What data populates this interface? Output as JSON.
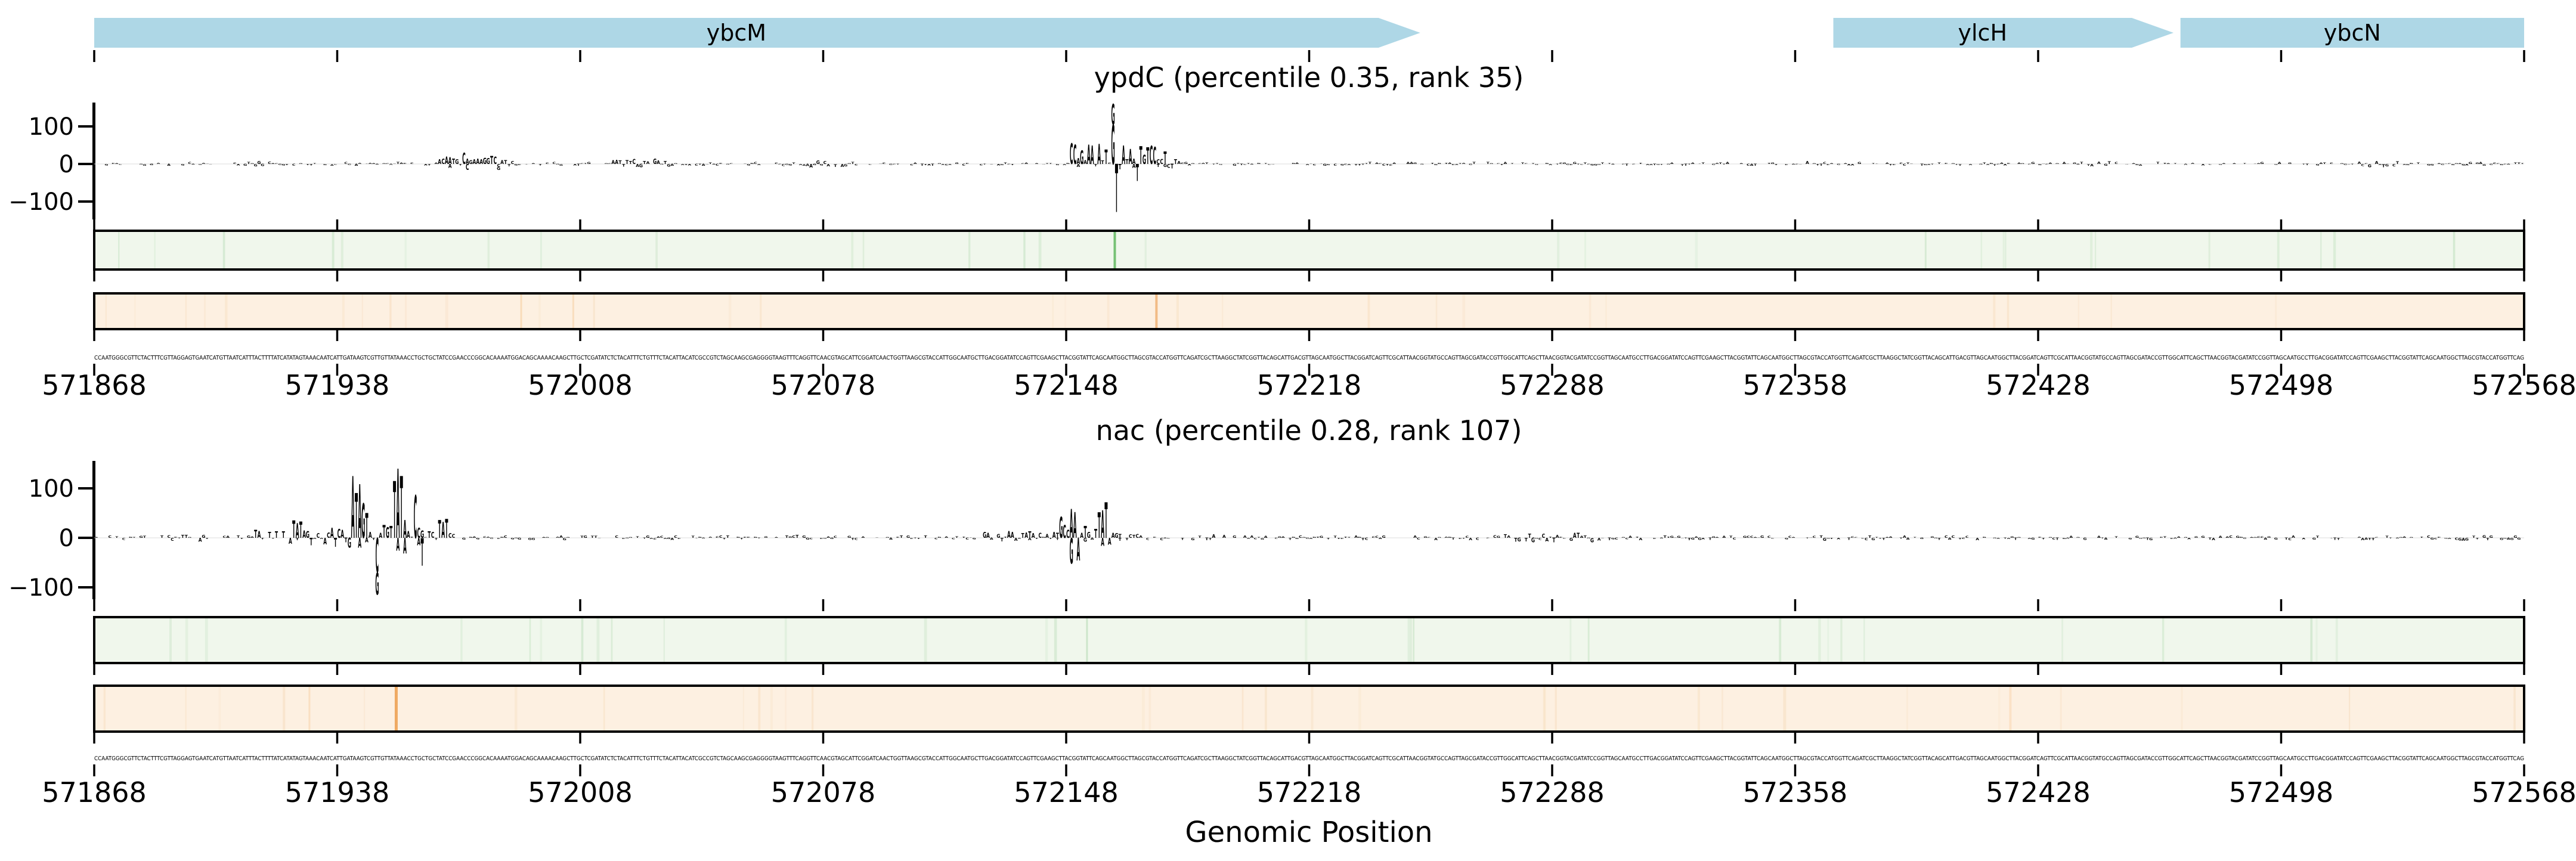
{
  "chart_data": {
    "type": "genomic-attribution-logo",
    "x_axis": {
      "label": "Genomic Position",
      "min": 571868,
      "max": 572568,
      "ticks": [
        571868,
        571938,
        572008,
        572078,
        572148,
        572218,
        572288,
        572358,
        572428,
        572498,
        572568
      ]
    },
    "y_axis": {
      "ticks": [
        100,
        0,
        -100
      ]
    },
    "base_colors": {
      "A": "#e2231b",
      "C": "#2438d8",
      "G": "#f5a31c",
      "T": "#1c7c1e"
    },
    "gene_track": {
      "fill": "#aed7e6",
      "genes": [
        {
          "name": "ybcM",
          "start": 571868,
          "end": 572250,
          "arrow": true
        },
        {
          "name": "ylcH",
          "start": 572369,
          "end": 572467,
          "arrow": true
        },
        {
          "name": "ybcN",
          "start": 572469,
          "end": 572568,
          "arrow": false
        }
      ]
    },
    "panels": [
      {
        "title": "ypdC (percentile 0.35, rank 35)",
        "letters": [
          [
            572149,
            "C",
            55
          ],
          [
            572150,
            "C",
            52
          ],
          [
            572151,
            "A",
            15
          ],
          [
            572151,
            "A",
            -8
          ],
          [
            572152,
            "G",
            36
          ],
          [
            572153,
            "A",
            10
          ],
          [
            572154,
            "A",
            52
          ],
          [
            572155,
            "A",
            50
          ],
          [
            572156,
            "T",
            -6
          ],
          [
            572157,
            "A",
            54
          ],
          [
            572158,
            "T",
            9
          ],
          [
            572159,
            "T",
            38
          ],
          [
            572161,
            "G",
            105
          ],
          [
            572161,
            "G",
            55
          ],
          [
            572162,
            "T",
            -128
          ],
          [
            572163,
            "T",
            -14
          ],
          [
            572164,
            "A",
            50
          ],
          [
            572165,
            "T",
            12
          ],
          [
            572166,
            "A",
            40
          ],
          [
            572167,
            "A",
            14
          ],
          [
            572167,
            "A",
            -10
          ],
          [
            572168,
            "T",
            -45
          ],
          [
            572169,
            "T",
            47
          ],
          [
            572170,
            "G",
            25
          ],
          [
            572171,
            "T",
            44
          ],
          [
            572172,
            "C",
            48
          ],
          [
            572173,
            "C",
            45
          ],
          [
            572174,
            "C",
            12
          ],
          [
            572174,
            "T",
            -8
          ],
          [
            572175,
            "C",
            13
          ],
          [
            572176,
            "T",
            33
          ],
          [
            572176,
            "G",
            -8
          ],
          [
            572177,
            "C",
            -10
          ],
          [
            572178,
            "T",
            -12
          ],
          [
            572179,
            "T",
            12
          ],
          [
            572180,
            "A",
            8
          ],
          [
            571967,
            "A",
            12
          ],
          [
            571968,
            "C",
            14
          ],
          [
            571969,
            "A",
            20
          ],
          [
            571970,
            "A",
            18
          ],
          [
            571970,
            "A",
            -10
          ],
          [
            571971,
            "T",
            14
          ],
          [
            571972,
            "G",
            12
          ],
          [
            571974,
            "C",
            30
          ],
          [
            571975,
            "A",
            14
          ],
          [
            571975,
            "C",
            -16
          ],
          [
            571976,
            "G",
            10
          ],
          [
            571977,
            "A",
            12
          ],
          [
            571978,
            "A",
            14
          ],
          [
            571979,
            "A",
            12
          ],
          [
            571980,
            "G",
            16
          ],
          [
            571981,
            "G",
            15
          ],
          [
            571982,
            "T",
            22
          ],
          [
            571983,
            "C",
            20
          ],
          [
            571984,
            "C",
            -8
          ],
          [
            571984,
            "G",
            -8
          ],
          [
            571985,
            "A",
            10
          ],
          [
            571986,
            "T",
            10
          ],
          [
            571987,
            "T",
            -6
          ],
          [
            571988,
            "C",
            8
          ],
          [
            572017,
            "A",
            10
          ],
          [
            572018,
            "A",
            11
          ],
          [
            572019,
            "T",
            9
          ],
          [
            572020,
            "T",
            -7
          ],
          [
            572021,
            "T",
            10
          ],
          [
            572022,
            "T",
            8
          ],
          [
            572023,
            "C",
            13
          ],
          [
            572024,
            "A",
            -8
          ],
          [
            572025,
            "G",
            -9
          ],
          [
            572026,
            "T",
            8
          ],
          [
            572027,
            "A",
            7
          ],
          [
            572029,
            "G",
            14
          ],
          [
            572030,
            "A",
            9
          ],
          [
            572032,
            "T",
            8
          ],
          [
            572033,
            "G",
            -7
          ],
          [
            572034,
            "A",
            -5
          ]
        ],
        "noise": {
          "seed": 11,
          "density": 0.8,
          "base_amp": 5,
          "clusters": [
            [
              571905,
              571925,
              8
            ],
            [
              572060,
              572092,
              10
            ],
            [
              572352,
              572372,
              8
            ],
            [
              572435,
              572462,
              8
            ],
            [
              572512,
              572542,
              10
            ]
          ]
        },
        "green_strip": {
          "bg": "#f0f7ec",
          "faint_color": "#9ccf9c",
          "faint_seed": 21,
          "lines": [
            [
              572162,
              "#6fbe6f",
              4,
              0.95
            ]
          ]
        },
        "orange_strip": {
          "bg": "#fdf0e1",
          "faint_color": "#f3cfa5",
          "faint_seed": 22,
          "lines": [
            [
              572174,
              "#f0b274",
              4,
              0.85
            ],
            [
              571991,
              "#f5c violet",
              0,
              0
            ],
            [
              571991,
              "#f5c894",
              3,
              0.5
            ],
            [
              572006,
              "#f5c894",
              3,
              0.45
            ]
          ]
        }
      },
      {
        "title": "nac (percentile 0.28, rank 107)",
        "letters": [
          [
            571914,
            "T",
            16
          ],
          [
            571915,
            "A",
            14
          ],
          [
            571918,
            "T",
            12
          ],
          [
            571920,
            "T",
            13
          ],
          [
            571922,
            "T",
            13
          ],
          [
            571924,
            "A",
            -12
          ],
          [
            571925,
            "T",
            35
          ],
          [
            571926,
            "A",
            30
          ],
          [
            571926,
            "T",
            -5
          ],
          [
            571927,
            "T",
            33
          ],
          [
            571928,
            "A",
            15
          ],
          [
            571929,
            "G",
            14
          ],
          [
            571930,
            "T",
            -15
          ],
          [
            571932,
            "C",
            9
          ],
          [
            571934,
            "A",
            -13
          ],
          [
            571935,
            "C",
            11
          ],
          [
            571936,
            "A",
            20
          ],
          [
            571937,
            "T",
            -18
          ],
          [
            571938,
            "C",
            18
          ],
          [
            571939,
            "A",
            16
          ],
          [
            571940,
            "T",
            -9
          ],
          [
            571941,
            "G",
            -20
          ],
          [
            571942,
            "A",
            125
          ],
          [
            571943,
            "T",
            90
          ],
          [
            571944,
            "A",
            108
          ],
          [
            571944,
            "A",
            -20
          ],
          [
            571945,
            "G",
            70
          ],
          [
            571946,
            "T",
            50
          ],
          [
            571946,
            "A",
            -9
          ],
          [
            571947,
            "A",
            12
          ],
          [
            571949,
            "C",
            -70
          ],
          [
            571949,
            "G",
            -45
          ],
          [
            571950,
            "A",
            10
          ],
          [
            571951,
            "T",
            26
          ],
          [
            571952,
            "G",
            22
          ],
          [
            571953,
            "T",
            24
          ],
          [
            571954,
            "T",
            115
          ],
          [
            571955,
            "A",
            140
          ],
          [
            571955,
            "A",
            -26
          ],
          [
            571956,
            "T",
            125
          ],
          [
            571957,
            "A",
            36
          ],
          [
            571957,
            "A",
            -32
          ],
          [
            571958,
            "A",
            14
          ],
          [
            571960,
            "C",
            86
          ],
          [
            571961,
            "A",
            -15
          ],
          [
            571961,
            "C",
            20
          ],
          [
            571962,
            "G",
            15
          ],
          [
            571962,
            "T",
            -56
          ],
          [
            571964,
            "T",
            13
          ],
          [
            571965,
            "C",
            12
          ],
          [
            571967,
            "T",
            36
          ],
          [
            571968,
            "A",
            32
          ],
          [
            571969,
            "T",
            38
          ],
          [
            571970,
            "C",
            9
          ],
          [
            571971,
            "C",
            8
          ],
          [
            572124,
            "G",
            12
          ],
          [
            572125,
            "A",
            10
          ],
          [
            572128,
            "G",
            8
          ],
          [
            572129,
            "T",
            -7
          ],
          [
            572131,
            "A",
            14
          ],
          [
            572132,
            "A",
            12
          ],
          [
            572133,
            "A",
            -6
          ],
          [
            572135,
            "T",
            9
          ],
          [
            572136,
            "A",
            11
          ],
          [
            572137,
            "T",
            13
          ],
          [
            572137,
            "A",
            -5
          ],
          [
            572138,
            "A",
            9
          ],
          [
            572140,
            "C",
            10
          ],
          [
            572142,
            "A",
            8
          ],
          [
            572144,
            "A",
            12
          ],
          [
            572145,
            "T",
            10
          ],
          [
            572145,
            "T",
            -4
          ],
          [
            572146,
            "G",
            42
          ],
          [
            572147,
            "C",
            26
          ],
          [
            572148,
            "C",
            16
          ],
          [
            572149,
            "A",
            58
          ],
          [
            572149,
            "G",
            -52
          ],
          [
            572150,
            "A",
            52
          ],
          [
            572151,
            "A",
            -46
          ],
          [
            572152,
            "A",
            10
          ],
          [
            572153,
            "T",
            24
          ],
          [
            572153,
            "G",
            -8
          ],
          [
            572154,
            "G",
            12
          ],
          [
            572156,
            "T",
            18
          ],
          [
            572157,
            "T",
            52
          ],
          [
            572158,
            "A",
            56
          ],
          [
            572158,
            "A",
            -16
          ],
          [
            572159,
            "T",
            72
          ],
          [
            572160,
            "A",
            -14
          ],
          [
            572161,
            "A",
            10
          ],
          [
            572162,
            "G",
            9
          ],
          [
            572163,
            "T",
            8
          ],
          [
            572163,
            "T",
            -6
          ],
          [
            572165,
            "T",
            -5
          ],
          [
            572166,
            "C",
            7
          ],
          [
            572167,
            "T",
            6
          ],
          [
            572168,
            "C",
            8
          ]
        ],
        "noise": {
          "seed": 33,
          "density": 0.8,
          "base_amp": 5,
          "clusters": [
            [
              571880,
              571912,
              9
            ],
            [
              572058,
              572078,
              7
            ],
            [
              572180,
              572210,
              8
            ],
            [
              572262,
              572315,
              11
            ],
            [
              572355,
              572382,
              7
            ],
            [
              572545,
              572566,
              10
            ]
          ]
        },
        "green_strip": {
          "bg": "#f0f7ec",
          "faint_color": "#9ccf9c",
          "faint_seed": 41,
          "lines": [
            [
              572154,
              "#a9d6a9",
              3,
              0.5
            ]
          ]
        },
        "orange_strip": {
          "bg": "#fdf0e1",
          "faint_color": "#f3cfa5",
          "faint_seed": 42,
          "lines": [
            [
              571955,
              "#eea55c",
              5,
              0.95
            ],
            [
              571930,
              "#f5c894",
              3,
              0.4
            ],
            [
              572420,
              "#f5c894",
              4,
              0.35
            ]
          ]
        }
      }
    ],
    "sequence": "CCAATGGGCGTTCTACTTTCGTTAGGAGTGAATCATGTTAATCATTTACTTTTATCATATAGTAAACAATCATTGATAAGTCGTTGTTATAAACCTGCTGCTATCCGAACCCGGCACAAAATGGACAGCAAAACAAGCTTGCTCGATATCTCTACATTTCTGTTTCTACATTACATCGCCGTCTAGCAAGCGAGGGGTAAGTTTCAGGTTCAACGTAGCATTCGGATCAACTGGTTAAGCGTACCATTGGCAATGCTTGACGGATATCCAGTTCGAAGCTTACGGTATTCAGCAATGGCTTAGCGTACCATGGTTCAGATCGCTTAAGGCTATCGGTTACAGCATTGACGTTAGCAATGGCTTACGGATCAGTTCGCATTAACGGTATGCCAGTTAGCGATACCGTTGGCATTCAGCTTAACGGTACGATATCCGGTTAGCAATGCCTTGACGGATATCCAGTTCGAAGCTTACGGTATTCAGCAATGGCTTAGCGTACCATGGTTCAGATCGCTTAAGGCTATCGGTTACAGCATTGACGTTAGCAATGGCTTACGGATCAGTTCGCATTAACGGTATGCCAGTTAGCGATACCGTTGGCATTCAGCTTAACGGTACGATATCCGGTTAGCAATGCCTTGACGGATATCCAGTTCGAAGCTTACGGTATTCAGCAATGGCTTAGCGTACCATGGTTCAGATC"
  }
}
